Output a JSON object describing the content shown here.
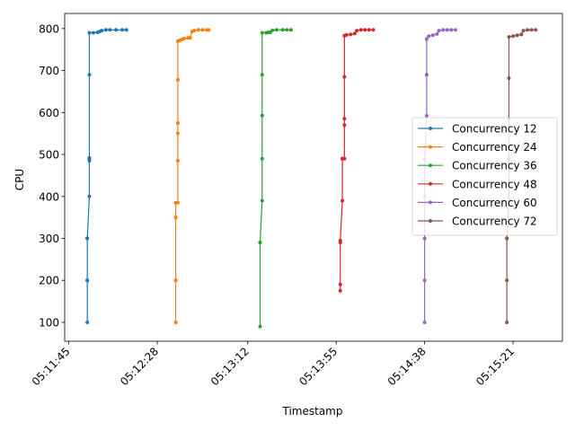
{
  "chart_data": {
    "type": "line",
    "xlabel": "Timestamp",
    "ylabel": "CPU",
    "x_unit": "time",
    "x_ticks": [
      "05:11:45",
      "05:12:28",
      "05:13:12",
      "05:13:55",
      "05:14:38",
      "05:15:21"
    ],
    "y_ticks": [
      100,
      200,
      300,
      400,
      500,
      600,
      700,
      800
    ],
    "xlim": [
      "05:11:43",
      "05:15:45"
    ],
    "ylim": [
      55,
      836
    ],
    "grid": false,
    "legend_position": "center-right",
    "series": [
      {
        "name": "Concurrency 12",
        "color": "#1f77b4",
        "points": [
          [
            "05:11:54",
            100
          ],
          [
            "05:11:54",
            200
          ],
          [
            "05:11:54",
            200
          ],
          [
            "05:11:54",
            300
          ],
          [
            "05:11:54",
            300
          ],
          [
            "05:11:55",
            400
          ],
          [
            "05:11:55",
            490
          ],
          [
            "05:11:55",
            485
          ],
          [
            "05:11:55",
            492
          ],
          [
            "05:11:55",
            690
          ],
          [
            "05:11:55",
            790
          ],
          [
            "05:11:57",
            790
          ],
          [
            "05:11:59",
            791
          ],
          [
            "05:12:00",
            793
          ],
          [
            "05:12:01",
            795
          ],
          [
            "05:12:03",
            797
          ],
          [
            "05:12:05",
            797
          ],
          [
            "05:12:08",
            797
          ],
          [
            "05:12:11",
            797
          ],
          [
            "05:12:13",
            797
          ]
        ]
      },
      {
        "name": "Concurrency 24",
        "color": "#ff7f0e",
        "points": [
          [
            "05:12:37",
            100
          ],
          [
            "05:12:37",
            200
          ],
          [
            "05:12:37",
            200
          ],
          [
            "05:12:37",
            350
          ],
          [
            "05:12:37",
            385
          ],
          [
            "05:12:38",
            385
          ],
          [
            "05:12:38",
            485
          ],
          [
            "05:12:38",
            550
          ],
          [
            "05:12:38",
            575
          ],
          [
            "05:12:38",
            678
          ],
          [
            "05:12:38",
            770
          ],
          [
            "05:12:39",
            772
          ],
          [
            "05:12:40",
            774
          ],
          [
            "05:12:41",
            776
          ],
          [
            "05:12:43",
            778
          ],
          [
            "05:12:44",
            778
          ],
          [
            "05:12:45",
            793
          ],
          [
            "05:12:46",
            795
          ],
          [
            "05:12:48",
            797
          ],
          [
            "05:12:50",
            797
          ],
          [
            "05:12:52",
            797
          ],
          [
            "05:12:53",
            797
          ]
        ]
      },
      {
        "name": "Concurrency 36",
        "color": "#2ca02c",
        "points": [
          [
            "05:13:18",
            90
          ],
          [
            "05:13:18",
            290
          ],
          [
            "05:13:18",
            290
          ],
          [
            "05:13:19",
            390
          ],
          [
            "05:13:19",
            490
          ],
          [
            "05:13:19",
            593
          ],
          [
            "05:13:19",
            690
          ],
          [
            "05:13:19",
            790
          ],
          [
            "05:13:21",
            790
          ],
          [
            "05:13:22",
            791
          ],
          [
            "05:13:23",
            791
          ],
          [
            "05:13:24",
            796
          ],
          [
            "05:13:26",
            797
          ],
          [
            "05:13:29",
            797
          ],
          [
            "05:13:31",
            797
          ],
          [
            "05:13:33",
            797
          ]
        ]
      },
      {
        "name": "Concurrency 48",
        "color": "#d62728",
        "points": [
          [
            "05:13:57",
            175
          ],
          [
            "05:13:57",
            190
          ],
          [
            "05:13:57",
            290
          ],
          [
            "05:13:57",
            295
          ],
          [
            "05:13:58",
            390
          ],
          [
            "05:13:58",
            490
          ],
          [
            "05:13:58",
            490
          ],
          [
            "05:13:59",
            490
          ],
          [
            "05:13:59",
            585
          ],
          [
            "05:13:59",
            570
          ],
          [
            "05:13:59",
            685
          ],
          [
            "05:13:59",
            783
          ],
          [
            "05:14:00",
            785
          ],
          [
            "05:14:02",
            786
          ],
          [
            "05:14:04",
            788
          ],
          [
            "05:14:05",
            795
          ],
          [
            "05:14:07",
            797
          ],
          [
            "05:14:09",
            797
          ],
          [
            "05:14:11",
            797
          ],
          [
            "05:14:13",
            797
          ]
        ]
      },
      {
        "name": "Concurrency 60",
        "color": "#9467bd",
        "points": [
          [
            "05:14:38",
            100
          ],
          [
            "05:14:38",
            200
          ],
          [
            "05:14:38",
            300
          ],
          [
            "05:14:38",
            400
          ],
          [
            "05:14:38",
            490
          ],
          [
            "05:14:39",
            592
          ],
          [
            "05:14:39",
            690
          ],
          [
            "05:14:39",
            775
          ],
          [
            "05:14:40",
            782
          ],
          [
            "05:14:42",
            784
          ],
          [
            "05:14:44",
            787
          ],
          [
            "05:14:45",
            795
          ],
          [
            "05:14:47",
            797
          ],
          [
            "05:14:49",
            797
          ],
          [
            "05:14:51",
            797
          ],
          [
            "05:14:53",
            797
          ]
        ]
      },
      {
        "name": "Concurrency 72",
        "color": "#8c564b",
        "points": [
          [
            "05:15:18",
            100
          ],
          [
            "05:15:18",
            200
          ],
          [
            "05:15:18",
            300
          ],
          [
            "05:15:18",
            300
          ],
          [
            "05:15:19",
            390
          ],
          [
            "05:15:19",
            490
          ],
          [
            "05:15:19",
            585
          ],
          [
            "05:15:19",
            682
          ],
          [
            "05:15:19",
            780
          ],
          [
            "05:15:21",
            782
          ],
          [
            "05:15:23",
            784
          ],
          [
            "05:15:25",
            786
          ],
          [
            "05:15:26",
            795
          ],
          [
            "05:15:28",
            797
          ],
          [
            "05:15:30",
            797
          ],
          [
            "05:15:32",
            797
          ]
        ]
      }
    ]
  }
}
